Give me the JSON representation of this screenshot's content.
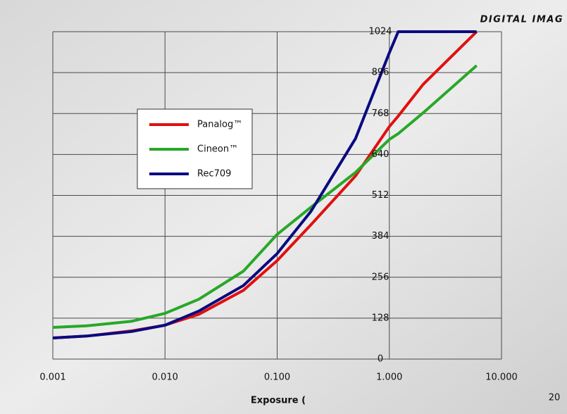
{
  "header": "DIGITAL IMAG",
  "page_number": "20",
  "chart_data": {
    "type": "line",
    "xlabel": "Exposure (",
    "log_x": true,
    "grid": true,
    "x": [
      0.001,
      0.002,
      0.005,
      0.01,
      0.02,
      0.05,
      0.1,
      0.2,
      0.5,
      1,
      1.2,
      2,
      6
    ],
    "series": [
      {
        "name": "Panalog™",
        "color": "#e01010",
        "values": [
          66,
          72,
          88,
          106,
          140,
          215,
          308,
          420,
          573,
          727,
          760,
          859,
          1024
        ]
      },
      {
        "name": "Cineon™",
        "color": "#28a828",
        "values": [
          99,
          104,
          118,
          143,
          187,
          275,
          390,
          475,
          584,
          687,
          705,
          770,
          918
        ]
      },
      {
        "name": "Rec709",
        "color": "#0a0a80",
        "values": [
          66,
          72,
          86,
          106,
          150,
          230,
          330,
          462,
          690,
          958,
          1024,
          1024,
          1024
        ]
      }
    ],
    "xlim": [
      0.001,
      10
    ],
    "xticks": [
      {
        "value": 0.001,
        "label": "0.001"
      },
      {
        "value": 0.01,
        "label": "0.010"
      },
      {
        "value": 0.1,
        "label": "0.100"
      },
      {
        "value": 1,
        "label": "1.000"
      },
      {
        "value": 10,
        "label": "10.000"
      }
    ],
    "ylim": [
      0,
      1024
    ],
    "yticks": [
      0,
      128,
      256,
      384,
      512,
      640,
      768,
      896,
      1024
    ]
  }
}
